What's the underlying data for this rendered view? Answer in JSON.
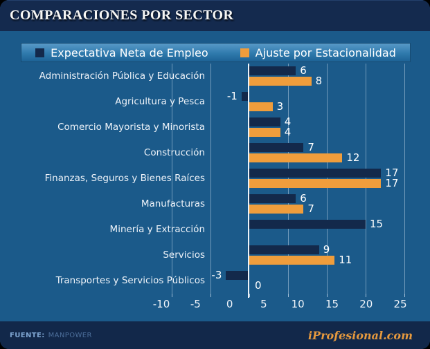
{
  "title": "COMPARACIONES POR SECTOR",
  "legend": {
    "items": [
      {
        "label": "Expectativa Neta de Empleo",
        "color": "#13294b"
      },
      {
        "label": "Ajuste por Estacionalidad",
        "color": "#ef9d3c"
      }
    ]
  },
  "footer": {
    "source_label": "FUENTE:",
    "source_value": "MANPOWER",
    "brand": "iProfesional.com"
  },
  "chart_data": {
    "type": "bar",
    "orientation": "horizontal",
    "title": "COMPARACIONES POR SECTOR",
    "xlabel": "",
    "ylabel": "",
    "categories": [
      "Administración Pública y Educación",
      "Agricultura y Pesca",
      "Comercio Mayorista y Minorista",
      "Construcción",
      "Finanzas, Seguros y Bienes Raíces",
      "Manufacturas",
      "Minería y Extracción",
      "Servicios",
      "Transportes y Servicios Públicos"
    ],
    "series": [
      {
        "name": "Expectativa Neta de Empleo",
        "color": "#13294b",
        "values": [
          6,
          -1,
          4,
          7,
          17,
          6,
          15,
          9,
          -3
        ]
      },
      {
        "name": "Ajuste por Estacionalidad",
        "color": "#ef9d3c",
        "values": [
          8,
          3,
          4,
          12,
          17,
          7,
          null,
          11,
          0
        ]
      }
    ],
    "x_ticks": [
      -10,
      -5,
      0,
      5,
      10,
      15,
      20,
      25
    ],
    "xlim": [
      -12,
      26
    ],
    "grid": "vertical",
    "legend_position": "top",
    "value_labels": true,
    "background_color": "#1b5a8a"
  }
}
